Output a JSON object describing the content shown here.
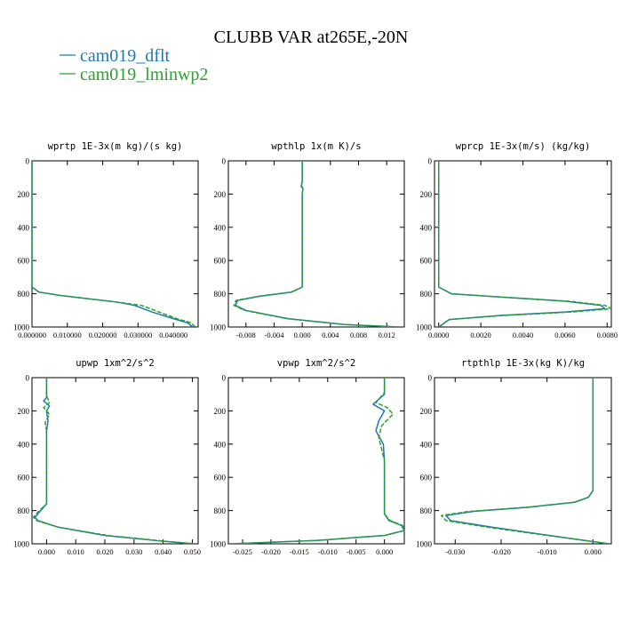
{
  "figure": {
    "title": "CLUBB VAR at265E,-20N"
  },
  "legend": {
    "placement": "top-left",
    "entries": [
      {
        "label": "cam019_dflt",
        "color": "#1f77b4"
      },
      {
        "label": "cam019_lminwp2",
        "color": "#2ca02c"
      }
    ]
  },
  "chart_data": [
    {
      "type": "line",
      "title": "wprtp  1E-3x(m kg)/(s kg)",
      "xlim": [
        0,
        0.047
      ],
      "ylim": [
        0,
        1000
      ],
      "y_inverted": true,
      "xticks": [
        "0.000000",
        "0.010000",
        "0.020000",
        "0.030000",
        "0.040000"
      ],
      "xtick_values": [
        0,
        0.01,
        0.02,
        0.03,
        0.04
      ],
      "yticks": [
        "0",
        "200",
        "400",
        "600",
        "800",
        "1000"
      ],
      "ytick_values": [
        0,
        200,
        400,
        600,
        800,
        1000
      ],
      "series": [
        {
          "color": "#1f77b4",
          "x": [
            0,
            0,
            0.002,
            0.008,
            0.016,
            0.024,
            0.029,
            0.034,
            0.04,
            0.044,
            0.0455
          ],
          "y": [
            0,
            760,
            790,
            810,
            830,
            850,
            870,
            910,
            950,
            975,
            1000
          ]
        },
        {
          "color": "#2ca02c",
          "x": [
            0,
            0,
            0.002,
            0.008,
            0.016,
            0.024,
            0.031,
            0.036,
            0.041,
            0.045,
            0.0462
          ],
          "y": [
            0,
            760,
            790,
            810,
            830,
            850,
            870,
            910,
            950,
            975,
            1000
          ]
        }
      ]
    },
    {
      "type": "line",
      "title": "wpthlp  1x(m K)/s",
      "xlim": [
        -0.0105,
        0.0145
      ],
      "ylim": [
        0,
        1000
      ],
      "y_inverted": true,
      "xticks": [
        "-0.008",
        "-0.004",
        "0.000",
        "0.004",
        "0.008",
        "0.012"
      ],
      "xtick_values": [
        -0.008,
        -0.004,
        0,
        0.004,
        0.008,
        0.012
      ],
      "yticks": [
        "0",
        "200",
        "400",
        "600",
        "800",
        "1000"
      ],
      "ytick_values": [
        0,
        200,
        400,
        600,
        800,
        1000
      ],
      "series": [
        {
          "color": "#1f77b4",
          "x": [
            0,
            0,
            -0.0001,
            0.0001,
            0,
            0,
            -0.0015,
            -0.006,
            -0.0092,
            -0.0095,
            -0.008,
            -0.002,
            0.006,
            0.0138
          ],
          "y": [
            0,
            120,
            150,
            170,
            200,
            760,
            790,
            815,
            840,
            870,
            900,
            950,
            985,
            1000
          ]
        },
        {
          "color": "#2ca02c",
          "x": [
            0,
            0,
            -0.0002,
            0.0001,
            0,
            0,
            -0.0016,
            -0.0062,
            -0.0094,
            -0.0097,
            -0.0082,
            -0.0022,
            0.006,
            0.0138
          ],
          "y": [
            0,
            120,
            150,
            170,
            200,
            760,
            790,
            815,
            840,
            870,
            900,
            950,
            985,
            1000
          ]
        }
      ]
    },
    {
      "type": "line",
      "title": "wprcp  1E-3x(m/s) (kg/kg)",
      "xlim": [
        -0.0002,
        0.0082
      ],
      "ylim": [
        0,
        1000
      ],
      "y_inverted": true,
      "xticks": [
        "0.0000",
        "0.0020",
        "0.0040",
        "0.0060",
        "0.0080"
      ],
      "xtick_values": [
        0,
        0.002,
        0.004,
        0.006,
        0.008
      ],
      "yticks": [
        "0",
        "200",
        "400",
        "600",
        "800",
        "1000"
      ],
      "ytick_values": [
        0,
        200,
        400,
        600,
        800,
        1000
      ],
      "series": [
        {
          "color": "#1f77b4",
          "x": [
            0,
            0,
            0.0006,
            0.003,
            0.006,
            0.0077,
            0.0079,
            0.006,
            0.003,
            0.0005,
            0
          ],
          "y": [
            0,
            760,
            800,
            820,
            845,
            870,
            890,
            910,
            930,
            955,
            1000
          ]
        },
        {
          "color": "#2ca02c",
          "x": [
            0,
            0,
            0.0006,
            0.003,
            0.0062,
            0.0079,
            0.0082,
            0.0063,
            0.0032,
            0.0005,
            0
          ],
          "y": [
            0,
            760,
            800,
            820,
            845,
            870,
            890,
            910,
            930,
            955,
            1000
          ]
        }
      ]
    },
    {
      "type": "line",
      "title": "upwp  1xm^2/s^2",
      "xlim": [
        -0.005,
        0.052
      ],
      "ylim": [
        0,
        1000
      ],
      "y_inverted": true,
      "xticks": [
        "0.000",
        "0.010",
        "0.020",
        "0.030",
        "0.040",
        "0.050"
      ],
      "xtick_values": [
        0,
        0.01,
        0.02,
        0.03,
        0.04,
        0.05
      ],
      "yticks": [
        "0",
        "200",
        "400",
        "600",
        "800",
        "1000"
      ],
      "ytick_values": [
        0,
        200,
        400,
        600,
        800,
        1000
      ],
      "series": [
        {
          "color": "#1f77b4",
          "x": [
            0,
            0,
            -0.001,
            0.001,
            0,
            0.0005,
            0,
            0,
            -0.002,
            -0.004,
            -0.003,
            0.004,
            0.02,
            0.04,
            0.051
          ],
          "y": [
            0,
            120,
            140,
            170,
            200,
            260,
            320,
            760,
            800,
            840,
            860,
            900,
            950,
            985,
            1000
          ]
        },
        {
          "color": "#2ca02c",
          "x": [
            0,
            0,
            0.001,
            -0.001,
            0.001,
            -0.0005,
            0,
            0,
            -0.0025,
            -0.0045,
            -0.0035,
            0.004,
            0.021,
            0.041,
            0.051
          ],
          "y": [
            0,
            110,
            150,
            180,
            220,
            270,
            320,
            760,
            800,
            840,
            860,
            900,
            950,
            985,
            1000
          ]
        }
      ]
    },
    {
      "type": "line",
      "title": "vpwp  1xm^2/s^2",
      "xlim": [
        -0.0275,
        0.0035
      ],
      "ylim": [
        0,
        1000
      ],
      "y_inverted": true,
      "xticks": [
        "-0.025",
        "-0.020",
        "-0.015",
        "-0.010",
        "-0.005",
        "0.000"
      ],
      "xtick_values": [
        -0.025,
        -0.02,
        -0.015,
        -0.01,
        -0.005,
        0
      ],
      "yticks": [
        "0",
        "200",
        "400",
        "600",
        "800",
        "1000"
      ],
      "ytick_values": [
        0,
        200,
        400,
        600,
        800,
        1000
      ],
      "series": [
        {
          "color": "#1f77b4",
          "x": [
            0,
            0,
            -0.002,
            0,
            -0.001,
            -0.0015,
            -0.0002,
            0,
            0,
            0.0008,
            0.003,
            0.0035,
            0,
            -0.012,
            -0.027
          ],
          "y": [
            0,
            100,
            160,
            200,
            260,
            320,
            400,
            500,
            820,
            860,
            890,
            920,
            950,
            980,
            1000
          ]
        },
        {
          "color": "#2ca02c",
          "x": [
            0,
            0,
            -0.0015,
            0.0005,
            0.0015,
            -0.0005,
            -0.001,
            0,
            0,
            0.001,
            0.0032,
            0.0035,
            0,
            -0.012,
            -0.027
          ],
          "y": [
            0,
            90,
            150,
            180,
            220,
            290,
            360,
            500,
            820,
            860,
            890,
            920,
            950,
            980,
            1000
          ]
        }
      ]
    },
    {
      "type": "line",
      "title": "rtpthlp  1E-3x(kg K)/kg",
      "xlim": [
        -0.0345,
        0.004
      ],
      "ylim": [
        0,
        1000
      ],
      "y_inverted": true,
      "xticks": [
        "-0.030",
        "-0.020",
        "-0.010",
        "0.000"
      ],
      "xtick_values": [
        -0.03,
        -0.02,
        -0.01,
        0
      ],
      "yticks": [
        "0",
        "200",
        "400",
        "600",
        "800",
        "1000"
      ],
      "ytick_values": [
        0,
        200,
        400,
        600,
        800,
        1000
      ],
      "series": [
        {
          "color": "#1f77b4",
          "x": [
            0,
            0,
            -0.001,
            -0.004,
            -0.014,
            -0.026,
            -0.032,
            -0.031,
            -0.022,
            -0.012,
            -0.003,
            0.0035
          ],
          "y": [
            0,
            680,
            720,
            750,
            780,
            805,
            830,
            860,
            900,
            940,
            975,
            1000
          ]
        },
        {
          "color": "#2ca02c",
          "x": [
            0,
            0,
            -0.001,
            -0.004,
            -0.0145,
            -0.027,
            -0.033,
            -0.032,
            -0.023,
            -0.0125,
            -0.003,
            0.0035
          ],
          "y": [
            0,
            680,
            720,
            750,
            780,
            805,
            830,
            860,
            900,
            940,
            975,
            1000
          ]
        }
      ]
    }
  ]
}
